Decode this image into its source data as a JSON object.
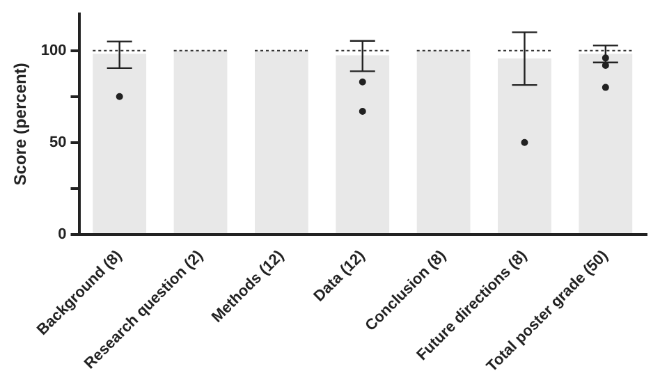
{
  "chart_data": {
    "type": "bar",
    "ylabel": "Score (percent)",
    "categories": [
      "Background (8)",
      "Research question (2)",
      "Methods (12)",
      "Data (12)",
      "Conclusion (8)",
      "Future directions (8)",
      "Total poster grade (50)"
    ],
    "series": [
      {
        "color": "#e8e8e8",
        "values": [
          98.3,
          100,
          100,
          97.5,
          100,
          95.8,
          98.3
        ],
        "errors": [
          [
            90.5,
            105
          ],
          null,
          null,
          [
            88.8,
            105.3
          ],
          null,
          [
            81.3,
            110
          ],
          [
            93.6,
            102.8
          ]
        ]
      },
      {
        "type": "scatter",
        "color": "#222222",
        "x": [
          "Background (8)",
          "Data (12)",
          "Data (12)",
          "Future directions (8)",
          "Total poster grade (50)",
          "Total poster grade (50)",
          "Total poster grade (50)"
        ],
        "values": [
          75,
          83,
          67,
          50,
          80,
          96,
          92
        ]
      }
    ],
    "ref_lines": [
      {
        "axis": "y",
        "value": 100,
        "line_style": "dotted",
        "color": "#333333"
      }
    ],
    "ylim": [
      0,
      120
    ],
    "yticks": [
      0,
      {
        "value": 25,
        "label": null
      },
      50,
      {
        "value": 75,
        "label": null
      },
      100
    ],
    "grid": false,
    "legend": false,
    "marker": "circle"
  }
}
